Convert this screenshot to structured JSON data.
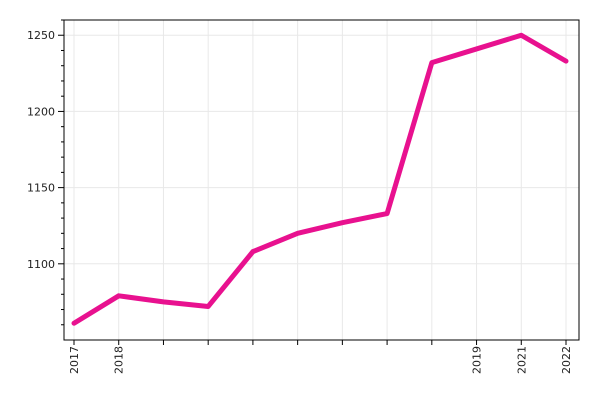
{
  "chart_data": {
    "type": "line",
    "title": "",
    "xlabel": "",
    "ylabel": "",
    "x_ticks": [
      "2017",
      "2018",
      "",
      "",
      "",
      "",
      "",
      "",
      "",
      "2019",
      "2021",
      "2022"
    ],
    "ylim": [
      1050,
      1260
    ],
    "y_ticks": [
      1100,
      1150,
      1200,
      1250
    ],
    "grid": true,
    "legend": "none",
    "series": [
      {
        "color": "#e8118f",
        "values": [
          1061,
          1079,
          1075,
          1072,
          1108,
          1120,
          1127,
          1133,
          1232,
          1241,
          1250,
          1233
        ]
      }
    ]
  }
}
